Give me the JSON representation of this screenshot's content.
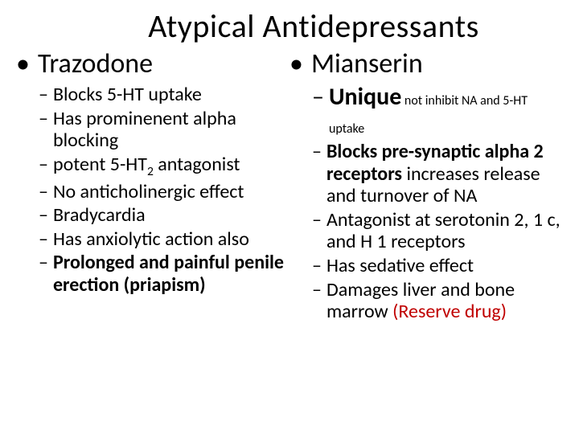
{
  "colors": {
    "text": "#000000",
    "accent_red": "#c00000",
    "background": "#ffffff"
  },
  "fonts": {
    "family": "Calibri, Arial, sans-serif",
    "title_size": 40,
    "h2_size": 34,
    "body_size": 24,
    "big_size": 30,
    "small_size": 16
  },
  "title": "Atypical Antidepressants",
  "left": {
    "heading": "Trazodone",
    "items": [
      {
        "text": "Blocks 5-HT uptake",
        "bold": false
      },
      {
        "text": "Has prominenent alpha blocking",
        "bold": false
      },
      {
        "html": "potent 5-HT<sub>2</sub> antagonist",
        "bold": false
      },
      {
        "text": "No anticholinergic effect",
        "bold": false
      },
      {
        "text": "Bradycardia",
        "bold": false
      },
      {
        "text": "Has anxiolytic action also",
        "bold": false
      },
      {
        "text": "Prolonged and painful penile erection (priapism)",
        "bold": true
      }
    ]
  },
  "right": {
    "heading": "Mianserin",
    "items": [
      {
        "big": true,
        "segments": [
          {
            "text": "Unique",
            "bold": true,
            "size": "big"
          },
          {
            "text": " not inhibit NA and 5-HT uptake",
            "bold": false,
            "size": "small"
          }
        ]
      },
      {
        "segments": [
          {
            "text": "Blocks pre-synaptic alpha 2 receptors",
            "bold": true
          },
          {
            "text": " increases release and turnover of NA",
            "bold": false
          }
        ]
      },
      {
        "text": "Antagonist at serotonin 2, 1 c, and H 1 receptors",
        "bold": false
      },
      {
        "text": "Has sedative effect",
        "bold": false
      },
      {
        "segments": [
          {
            "text": "Damages liver and bone marrow ",
            "bold": false
          },
          {
            "text": "(Reserve drug)",
            "bold": false,
            "color": "accent_red"
          }
        ]
      }
    ]
  }
}
